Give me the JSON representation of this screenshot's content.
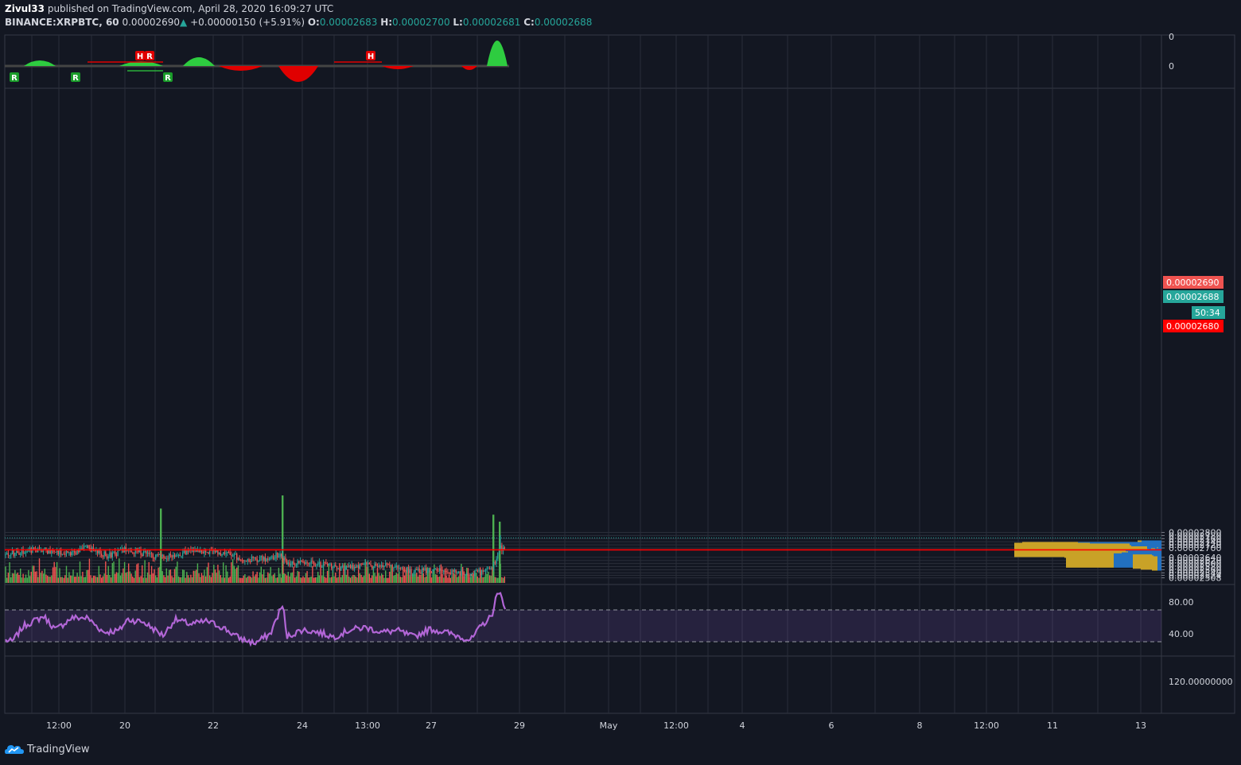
{
  "header": {
    "author": "Zivul33",
    "published_text": "published on TradingView.com, April 28, 2020 16:09:27 UTC",
    "symbol": "BINANCE:XRPBTC, 60",
    "last_price": "0.00002690",
    "arrow": "▲",
    "change": "+0.00000150 (+5.91%)",
    "o_label": "O:",
    "o_value": "0.00002683",
    "h_label": "H:",
    "h_value": "0.00002700",
    "l_label": "L:",
    "l_value": "0.00002681",
    "c_label": "C:",
    "c_value": "0.00002688"
  },
  "footer": {
    "brand": "TradingView",
    "logo_icon": "tradingview-cloud-icon"
  },
  "colors": {
    "background": "#131722",
    "grid": "#2a2e39",
    "up": "#26a69a",
    "down": "#ef5350",
    "volume_up": "#4caf50",
    "volume_down": "#ef5350",
    "rsi": "#b266d6",
    "profile_up": "#2962ff",
    "profile_down": "#c9a227"
  },
  "chart_data": {
    "type": "candlestick",
    "symbol": "BINANCE:XRPBTC",
    "timeframe": "60",
    "x_tick_labels": [
      "12:00",
      "20",
      "22",
      "24",
      "13:00",
      "27",
      "29",
      "May",
      "12:00",
      "4",
      "6",
      "8",
      "12:00",
      "11",
      "13"
    ],
    "price_axis": {
      "tick_labels": [
        "0.00002800",
        "0.00002780",
        "0.00002760",
        "0.00002740",
        "0.00002720",
        "0.00002700",
        "0.00002640",
        "0.00002620",
        "0.00002600",
        "0.00002580",
        "0.00002560",
        "0.00002540",
        "0.00002524",
        "0.00002508"
      ],
      "range": [
        2.5e-05,
        2.81e-05
      ]
    },
    "price_badges": [
      {
        "text": "0.00002690",
        "color": "#ef5350"
      },
      {
        "text": "0.00002688",
        "color": "#26a69a"
      },
      {
        "text": "50:34",
        "color": "#26a69a"
      },
      {
        "text": "0.00002680",
        "color": "#ff0000"
      }
    ],
    "horizontal_line": {
      "price": 2.688e-05,
      "color": "#ff0000"
    },
    "close_path": [
      [
        0,
        2.65e-05
      ],
      [
        40,
        2.69e-05
      ],
      [
        90,
        2.67e-05
      ],
      [
        110,
        2.7e-05
      ],
      [
        135,
        2.65e-05
      ],
      [
        160,
        2.69e-05
      ],
      [
        185,
        2.66e-05
      ],
      [
        205,
        2.64e-05
      ],
      [
        245,
        2.69e-05
      ],
      [
        275,
        2.67e-05
      ],
      [
        305,
        2.63e-05
      ],
      [
        335,
        2.63e-05
      ],
      [
        352,
        2.66e-05
      ],
      [
        360,
        2.6e-05
      ],
      [
        385,
        2.61e-05
      ],
      [
        410,
        2.59e-05
      ],
      [
        430,
        2.57e-05
      ],
      [
        460,
        2.59e-05
      ],
      [
        490,
        2.58e-05
      ],
      [
        520,
        2.55e-05
      ],
      [
        545,
        2.56e-05
      ],
      [
        570,
        2.55e-05
      ],
      [
        592,
        2.53e-05
      ],
      [
        618,
        2.56e-05
      ],
      [
        624,
        2.64e-05
      ],
      [
        628,
        2.7e-05
      ],
      [
        636,
        2.69e-05
      ]
    ],
    "spike_highs": [
      {
        "x": 110,
        "price": 2.71e-05
      },
      {
        "x": 355,
        "price": 2.71e-05
      },
      {
        "x": 629,
        "price": 2.782e-05
      },
      {
        "x": 633,
        "price": 2.72e-05
      }
    ],
    "spike_lows": [
      {
        "x": 204,
        "price": 2.63e-05
      },
      {
        "x": 356,
        "price": 2.53e-05
      },
      {
        "x": 593,
        "price": 2.52e-05
      }
    ],
    "volume_spikes": [
      {
        "x": 202,
        "level": 0.85
      },
      {
        "x": 355,
        "level": 1.0
      },
      {
        "x": 620,
        "level": 0.78
      },
      {
        "x": 628,
        "level": 0.7
      }
    ],
    "volume_profile": [
      {
        "price": 2.7025e-05,
        "up": 25,
        "down": 5
      },
      {
        "price": 2.6925e-05,
        "up": 105,
        "down": 70
      },
      {
        "price": 2.6875e-05,
        "up": 90,
        "down": 95
      },
      {
        "price": 2.6825e-05,
        "up": 40,
        "down": 82
      },
      {
        "price": 2.6775e-05,
        "up": 40,
        "down": 40
      },
      {
        "price": 2.6715e-05,
        "up": 38,
        "down": 38
      },
      {
        "price": 2.6645e-05,
        "up": 18,
        "down": 28
      },
      {
        "price": 2.6575e-05,
        "up": 4,
        "down": 2
      },
      {
        "price": 2.6525e-05,
        "up": 8,
        "down": 5
      },
      {
        "price": 2.6475e-05,
        "up": 16,
        "down": 18
      },
      {
        "price": 2.6395e-05,
        "up": 45,
        "down": 38
      },
      {
        "price": 2.6325e-05,
        "up": 42,
        "down": 58
      },
      {
        "price": 2.6255e-05,
        "up": 50,
        "down": 52
      },
      {
        "price": 2.6195e-05,
        "up": 60,
        "down": 60
      },
      {
        "price": 2.6125e-05,
        "up": 12,
        "down": 24
      },
      {
        "price": 2.6065e-05,
        "up": 10,
        "down": 16
      },
      {
        "price": 2.6005e-05,
        "up": 5,
        "down": 7
      }
    ],
    "rsi": {
      "tick_labels": [
        "80.00",
        "40.00"
      ],
      "upper_band": 70,
      "lower_band": 30,
      "range": [
        20,
        100
      ],
      "values": [
        [
          0,
          34
        ],
        [
          15,
          30
        ],
        [
          30,
          50
        ],
        [
          55,
          62
        ],
        [
          70,
          45
        ],
        [
          90,
          60
        ],
        [
          110,
          60
        ],
        [
          130,
          42
        ],
        [
          150,
          44
        ],
        [
          160,
          58
        ],
        [
          180,
          55
        ],
        [
          205,
          38
        ],
        [
          220,
          58
        ],
        [
          240,
          52
        ],
        [
          260,
          56
        ],
        [
          280,
          48
        ],
        [
          300,
          35
        ],
        [
          320,
          28
        ],
        [
          340,
          40
        ],
        [
          352,
          70
        ],
        [
          356,
          76
        ],
        [
          360,
          36
        ],
        [
          380,
          45
        ],
        [
          400,
          42
        ],
        [
          420,
          36
        ],
        [
          440,
          45
        ],
        [
          460,
          48
        ],
        [
          480,
          42
        ],
        [
          500,
          44
        ],
        [
          520,
          36
        ],
        [
          540,
          46
        ],
        [
          560,
          42
        ],
        [
          580,
          36
        ],
        [
          592,
          32
        ],
        [
          605,
          50
        ],
        [
          618,
          62
        ],
        [
          624,
          88
        ],
        [
          630,
          89
        ],
        [
          636,
          70
        ]
      ]
    },
    "oscillator": {
      "tick_labels": [
        "0",
        "0"
      ],
      "labels": [
        {
          "x": 18,
          "text": "R",
          "pos": "below"
        },
        {
          "x": 95,
          "text": "R",
          "pos": "below"
        },
        {
          "x": 176,
          "text": "H",
          "pos": "above"
        },
        {
          "x": 188,
          "text": "R",
          "pos": "above"
        },
        {
          "x": 211,
          "text": "R",
          "pos": "below"
        },
        {
          "x": 466,
          "text": "H",
          "pos": "above"
        }
      ],
      "humps": [
        {
          "x0": 30,
          "x1": 70,
          "amp": 7
        },
        {
          "x0": 150,
          "x1": 205,
          "amp": 6
        },
        {
          "x0": 230,
          "x1": 270,
          "amp": 11
        },
        {
          "x0": 350,
          "x1": 400,
          "amp": -20
        },
        {
          "x0": 275,
          "x1": 330,
          "amp": -6
        },
        {
          "x0": 480,
          "x1": 520,
          "amp": -4
        },
        {
          "x0": 580,
          "x1": 600,
          "amp": -5
        },
        {
          "x0": 612,
          "x1": 638,
          "amp": 32
        }
      ]
    },
    "empty_pane_tick_label": "120.00000000"
  }
}
